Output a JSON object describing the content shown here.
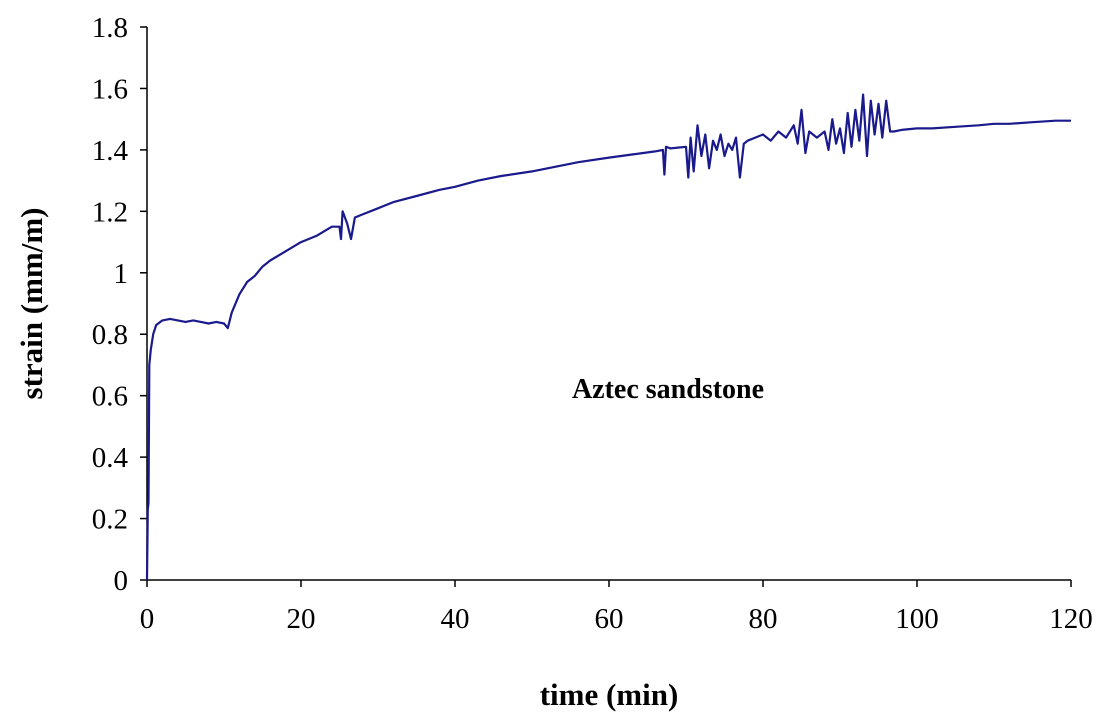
{
  "chart_data": {
    "type": "line",
    "title": "",
    "xlabel": "time (min)",
    "ylabel": "strain (mm/m)",
    "annotation": "Aztec sandstone",
    "xlim": [
      0,
      120
    ],
    "ylim": [
      0,
      1.8
    ],
    "x_ticks": [
      "0",
      "20",
      "40",
      "60",
      "80",
      "100",
      "120"
    ],
    "y_ticks": [
      "0",
      "0.2",
      "0.4",
      "0.6",
      "0.8",
      "1",
      "1.2",
      "1.4",
      "1.6",
      "1.8"
    ],
    "grid": false,
    "legend": "none",
    "line_color": "#1a1a8c",
    "series": [
      {
        "x": [
          0,
          0.1,
          0.2,
          0.3,
          0.5,
          0.8,
          1.2,
          2,
          3,
          4,
          5,
          6,
          7,
          8,
          9,
          10,
          10.5,
          11,
          12,
          13,
          14,
          15,
          16,
          18,
          20,
          22,
          24,
          25,
          25.2,
          25.4,
          26,
          26.5,
          27,
          28,
          30,
          32,
          35,
          38,
          40,
          43,
          46,
          50,
          53,
          56,
          60,
          63,
          66,
          67,
          67.2,
          67.4,
          68,
          70,
          70.3,
          70.6,
          71,
          71.5,
          72,
          72.5,
          73,
          73.5,
          74,
          74.5,
          75,
          75.5,
          76,
          76.5,
          77,
          77.5,
          78,
          79,
          80,
          81,
          82,
          83,
          84,
          84.5,
          85,
          85.5,
          86,
          87,
          88,
          88.5,
          89,
          89.5,
          90,
          90.5,
          91,
          91.5,
          92,
          92.5,
          93,
          93.5,
          94,
          94.5,
          95,
          95.5,
          96,
          96.5,
          97,
          98,
          100,
          102,
          105,
          108,
          110,
          112,
          115,
          118,
          120
        ],
        "y": [
          0,
          0.23,
          0.25,
          0.7,
          0.75,
          0.8,
          0.83,
          0.845,
          0.85,
          0.845,
          0.84,
          0.845,
          0.84,
          0.835,
          0.84,
          0.835,
          0.82,
          0.87,
          0.93,
          0.97,
          0.99,
          1.02,
          1.04,
          1.07,
          1.1,
          1.12,
          1.15,
          1.15,
          1.11,
          1.2,
          1.16,
          1.11,
          1.18,
          1.19,
          1.21,
          1.23,
          1.25,
          1.27,
          1.28,
          1.3,
          1.315,
          1.33,
          1.345,
          1.36,
          1.375,
          1.385,
          1.395,
          1.4,
          1.32,
          1.41,
          1.405,
          1.41,
          1.31,
          1.44,
          1.33,
          1.48,
          1.38,
          1.45,
          1.34,
          1.43,
          1.4,
          1.45,
          1.38,
          1.42,
          1.4,
          1.44,
          1.31,
          1.42,
          1.43,
          1.44,
          1.45,
          1.43,
          1.46,
          1.44,
          1.48,
          1.42,
          1.53,
          1.39,
          1.46,
          1.44,
          1.46,
          1.4,
          1.5,
          1.42,
          1.47,
          1.39,
          1.52,
          1.41,
          1.53,
          1.43,
          1.58,
          1.38,
          1.56,
          1.45,
          1.55,
          1.44,
          1.56,
          1.46,
          1.46,
          1.465,
          1.47,
          1.47,
          1.475,
          1.48,
          1.485,
          1.485,
          1.49,
          1.495,
          1.495
        ]
      }
    ]
  }
}
